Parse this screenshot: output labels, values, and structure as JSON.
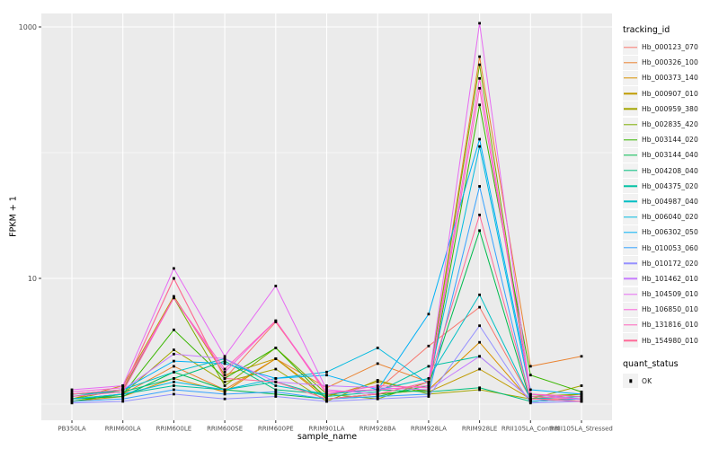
{
  "chart_data": {
    "type": "line",
    "title": "",
    "xlabel": "sample_name",
    "ylabel": "FPKM + 1",
    "y_scale": "log10",
    "ylim": [
      0.74,
      1280
    ],
    "grid": "on",
    "legend_position": "right",
    "panel_bg": "#EBEBEB",
    "grid_color": "#FFFFFF",
    "tick_label_color": "#4D4D4D",
    "tick_mark_color": "#333333",
    "point_color": "#000000",
    "y_ticks": [
      {
        "label": "1000",
        "value": 1000
      },
      {
        "label": "10",
        "value": 10
      }
    ],
    "y_minor_gridlines": [
      1,
      100
    ],
    "categories": [
      "PB350LA",
      "RRIM600LA",
      "RRIM600LE",
      "RRIM600SE",
      "RRIM600PE",
      "RRIM901LA",
      "RRIM928BA",
      "RRIM928LA",
      "RRIM928LE",
      "RRII105LA_Control",
      "RRII105LA_Stressed"
    ],
    "series": [
      {
        "id": "Hb_000123_070",
        "color": "#F8766D",
        "values": [
          1.2,
          1.3,
          10.0,
          1.6,
          4.5,
          1.25,
          1.3,
          2.9,
          5.9,
          1.1,
          1.1
        ]
      },
      {
        "id": "Hb_000326_100",
        "color": "#EA8331",
        "values": [
          1.1,
          1.2,
          2.0,
          1.3,
          2.3,
          1.35,
          2.1,
          1.5,
          580,
          2.0,
          2.4
        ]
      },
      {
        "id": "Hb_000373_140",
        "color": "#D89000",
        "values": [
          1.05,
          1.15,
          1.6,
          1.25,
          2.3,
          1.1,
          1.2,
          1.3,
          3.1,
          1.05,
          1.1
        ]
      },
      {
        "id": "Hb_000907_010",
        "color": "#C09B00",
        "values": [
          1.1,
          1.4,
          7.2,
          1.7,
          2.3,
          1.15,
          1.5,
          1.25,
          1.9,
          1.1,
          1.2
        ]
      },
      {
        "id": "Hb_000959_380",
        "color": "#A3A500",
        "values": [
          1.05,
          1.2,
          2.7,
          1.5,
          1.9,
          1.05,
          1.55,
          1.2,
          1.3,
          1.1,
          1.4
        ]
      },
      {
        "id": "Hb_002835_420",
        "color": "#7CAE00",
        "values": [
          1.1,
          1.3,
          7.0,
          1.4,
          2.8,
          1.2,
          1.1,
          1.5,
          500,
          1.15,
          1.2
        ]
      },
      {
        "id": "Hb_003144_020",
        "color": "#39B600",
        "values": [
          1.05,
          1.2,
          3.9,
          1.6,
          2.8,
          1.1,
          1.2,
          1.3,
          240,
          1.7,
          1.25
        ]
      },
      {
        "id": "Hb_003144_040",
        "color": "#00BB4E",
        "values": [
          1.1,
          1.15,
          1.8,
          1.3,
          1.2,
          1.1,
          1.15,
          1.4,
          24.0,
          1.05,
          1.1
        ]
      },
      {
        "id": "Hb_004208_040",
        "color": "#00BF7D",
        "values": [
          1.2,
          1.25,
          1.6,
          2.2,
          1.3,
          1.2,
          1.3,
          1.25,
          1.35,
          1.05,
          1.1
        ]
      },
      {
        "id": "Hb_004375_020",
        "color": "#00C1A3",
        "values": [
          1.1,
          1.2,
          1.4,
          1.3,
          1.5,
          1.15,
          1.25,
          2.0,
          2.4,
          1.1,
          1.05
        ]
      },
      {
        "id": "Hb_004987_040",
        "color": "#00BFC4",
        "values": [
          1.15,
          1.3,
          1.8,
          2.3,
          1.4,
          1.2,
          1.3,
          1.6,
          7.4,
          1.1,
          1.15
        ]
      },
      {
        "id": "Hb_006040_020",
        "color": "#00BAE0",
        "values": [
          1.1,
          1.2,
          1.5,
          1.3,
          1.6,
          1.8,
          2.8,
          1.45,
          112,
          1.2,
          1.1
        ]
      },
      {
        "id": "Hb_006302_050",
        "color": "#00B0F6",
        "values": [
          1.2,
          1.3,
          2.2,
          2.1,
          1.6,
          1.7,
          1.3,
          5.2,
          128,
          1.3,
          1.2
        ]
      },
      {
        "id": "Hb_010053_060",
        "color": "#35A2FF",
        "values": [
          1.05,
          1.1,
          1.3,
          1.2,
          1.25,
          1.1,
          1.15,
          1.2,
          54.0,
          1.05,
          1.1
        ]
      },
      {
        "id": "Hb_010172_020",
        "color": "#9590FF",
        "values": [
          1.02,
          1.05,
          1.2,
          1.1,
          1.15,
          1.05,
          1.1,
          1.15,
          4.2,
          1.02,
          1.05
        ]
      },
      {
        "id": "Hb_101462_010",
        "color": "#C77CFF",
        "values": [
          1.2,
          1.3,
          2.5,
          2.3,
          1.5,
          1.4,
          1.35,
          1.3,
          2.4,
          1.1,
          1.05
        ]
      },
      {
        "id": "Hb_104509_010",
        "color": "#E76BF3",
        "values": [
          1.3,
          1.4,
          12.0,
          2.4,
          8.7,
          1.3,
          1.2,
          1.5,
          1070,
          1.2,
          1.1
        ]
      },
      {
        "id": "Hb_106850_010",
        "color": "#FA62DB",
        "values": [
          1.25,
          1.35,
          7.0,
          1.8,
          4.6,
          1.25,
          1.3,
          1.4,
          390,
          1.15,
          1.1
        ]
      },
      {
        "id": "Hb_131816_010",
        "color": "#FF62BC",
        "values": [
          1.15,
          1.25,
          7.0,
          1.9,
          4.6,
          1.2,
          1.4,
          1.35,
          325,
          1.2,
          1.15
        ]
      },
      {
        "id": "Hb_154980_010",
        "color": "#FF6A98",
        "values": [
          1.2,
          1.3,
          10.0,
          1.6,
          1.5,
          1.1,
          1.2,
          1.5,
          32.0,
          1.1,
          1.05
        ]
      }
    ]
  },
  "legend": {
    "tracking_title": "tracking_id",
    "quant_title": "quant_status",
    "quant_items": [
      {
        "label": "OK"
      }
    ]
  }
}
